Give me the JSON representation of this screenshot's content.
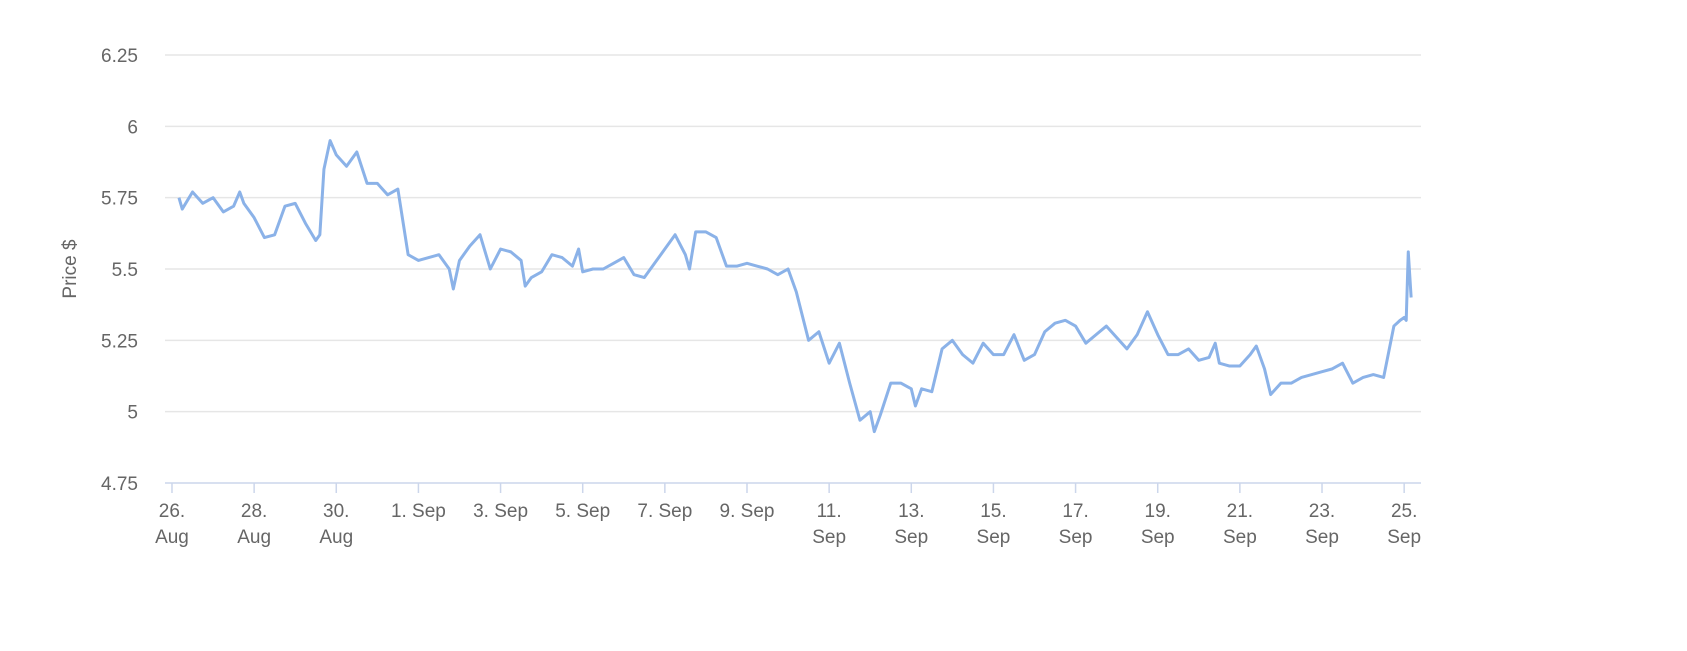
{
  "chart_data": {
    "type": "line",
    "y_label": "Price $",
    "xlim": [
      -0.17,
      30.41
    ],
    "xticks": [
      {
        "value": 0,
        "label": "26. Aug"
      },
      {
        "value": 2,
        "label": "28. Aug"
      },
      {
        "value": 4,
        "label": "30. Aug"
      },
      {
        "value": 6,
        "label": "1. Sep"
      },
      {
        "value": 8,
        "label": "3. Sep"
      },
      {
        "value": 10,
        "label": "5. Sep"
      },
      {
        "value": 12,
        "label": "7. Sep"
      },
      {
        "value": 14,
        "label": "9. Sep"
      },
      {
        "value": 16,
        "label": "11. Sep"
      },
      {
        "value": 18,
        "label": "13. Sep"
      },
      {
        "value": 20,
        "label": "15. Sep"
      },
      {
        "value": 22,
        "label": "17. Sep"
      },
      {
        "value": 24,
        "label": "19. Sep"
      },
      {
        "value": 26,
        "label": "21. Sep"
      },
      {
        "value": 28,
        "label": "23. Sep"
      },
      {
        "value": 30,
        "label": "25. Sep"
      }
    ],
    "ylim": [
      4.75,
      6.25
    ],
    "yticks": [
      4.75,
      5,
      5.25,
      5.5,
      5.75,
      6,
      6.25
    ],
    "grid": true,
    "x": [
      0.17,
      0.25,
      0.5,
      0.75,
      1.0,
      1.25,
      1.5,
      1.65,
      1.75,
      2.0,
      2.25,
      2.5,
      2.75,
      3.0,
      3.25,
      3.5,
      3.6,
      3.7,
      3.85,
      4.0,
      4.25,
      4.5,
      4.75,
      5.0,
      5.25,
      5.5,
      5.75,
      6.0,
      6.25,
      6.5,
      6.75,
      6.85,
      7.0,
      7.25,
      7.5,
      7.75,
      8.0,
      8.25,
      8.5,
      8.6,
      8.75,
      9.0,
      9.25,
      9.5,
      9.75,
      9.9,
      10.0,
      10.25,
      10.5,
      10.75,
      11.0,
      11.25,
      11.5,
      11.75,
      12.0,
      12.25,
      12.5,
      12.6,
      12.75,
      13.0,
      13.25,
      13.5,
      13.75,
      14.0,
      14.25,
      14.5,
      14.75,
      15.0,
      15.2,
      15.5,
      15.75,
      16.0,
      16.25,
      16.5,
      16.75,
      17.0,
      17.1,
      17.25,
      17.5,
      17.75,
      18.0,
      18.1,
      18.25,
      18.5,
      18.75,
      19.0,
      19.25,
      19.5,
      19.75,
      20.0,
      20.25,
      20.5,
      20.75,
      21.0,
      21.25,
      21.5,
      21.75,
      22.0,
      22.25,
      22.5,
      22.75,
      23.0,
      23.25,
      23.5,
      23.75,
      24.0,
      24.25,
      24.5,
      24.75,
      25.0,
      25.25,
      25.4,
      25.5,
      25.75,
      26.0,
      26.25,
      26.4,
      26.6,
      26.75,
      27.0,
      27.25,
      27.5,
      27.75,
      28.0,
      28.25,
      28.5,
      28.75,
      29.0,
      29.25,
      29.5,
      29.75,
      29.9,
      30.0,
      30.05,
      30.1,
      30.17
    ],
    "series": [
      {
        "name": "Price",
        "color": "#8bb2e8",
        "values": [
          5.75,
          5.71,
          5.77,
          5.73,
          5.75,
          5.7,
          5.72,
          5.77,
          5.73,
          5.68,
          5.61,
          5.62,
          5.72,
          5.73,
          5.66,
          5.6,
          5.62,
          5.85,
          5.95,
          5.9,
          5.86,
          5.91,
          5.8,
          5.8,
          5.76,
          5.78,
          5.55,
          5.53,
          5.54,
          5.55,
          5.5,
          5.43,
          5.53,
          5.58,
          5.62,
          5.5,
          5.57,
          5.56,
          5.53,
          5.44,
          5.47,
          5.49,
          5.55,
          5.54,
          5.51,
          5.57,
          5.49,
          5.5,
          5.5,
          5.52,
          5.54,
          5.48,
          5.47,
          5.52,
          5.57,
          5.62,
          5.55,
          5.5,
          5.63,
          5.63,
          5.61,
          5.51,
          5.51,
          5.52,
          5.51,
          5.5,
          5.48,
          5.5,
          5.42,
          5.25,
          5.28,
          5.17,
          5.24,
          5.1,
          4.97,
          5.0,
          4.93,
          4.99,
          5.1,
          5.1,
          5.08,
          5.02,
          5.08,
          5.07,
          5.22,
          5.25,
          5.2,
          5.17,
          5.24,
          5.2,
          5.2,
          5.27,
          5.18,
          5.2,
          5.28,
          5.31,
          5.32,
          5.3,
          5.24,
          5.27,
          5.3,
          5.26,
          5.22,
          5.27,
          5.35,
          5.27,
          5.2,
          5.2,
          5.22,
          5.18,
          5.19,
          5.24,
          5.17,
          5.16,
          5.16,
          5.2,
          5.23,
          5.15,
          5.06,
          5.1,
          5.1,
          5.12,
          5.13,
          5.14,
          5.15,
          5.17,
          5.1,
          5.12,
          5.13,
          5.12,
          5.3,
          5.32,
          5.33,
          5.32,
          5.56,
          5.4
        ]
      }
    ]
  }
}
